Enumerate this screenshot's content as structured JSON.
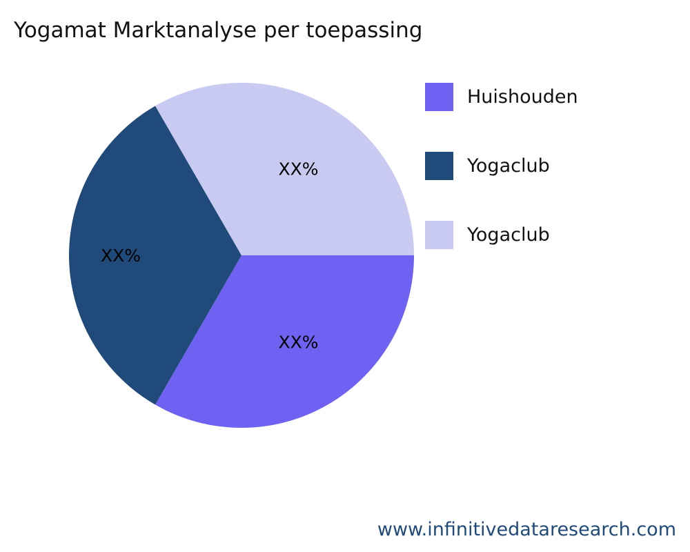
{
  "chart_data": {
    "type": "pie",
    "title": "Yogamat Marktanalyse per toepassing",
    "slices": [
      {
        "label": "Huishouden",
        "value": 33.33,
        "data_label": "XX%",
        "color": "#6f62f2"
      },
      {
        "label": "Yogaclub",
        "value": 33.33,
        "data_label": "XX%",
        "color": "#1f4a7a"
      },
      {
        "label": "Yogaclub",
        "value": 33.33,
        "data_label": "XX%",
        "color": "#c9caf1"
      }
    ],
    "start_angle_deg": 0,
    "direction": "clockwise",
    "legend_placement": "right"
  },
  "watermark": "www.infinitivedataresearch.com"
}
